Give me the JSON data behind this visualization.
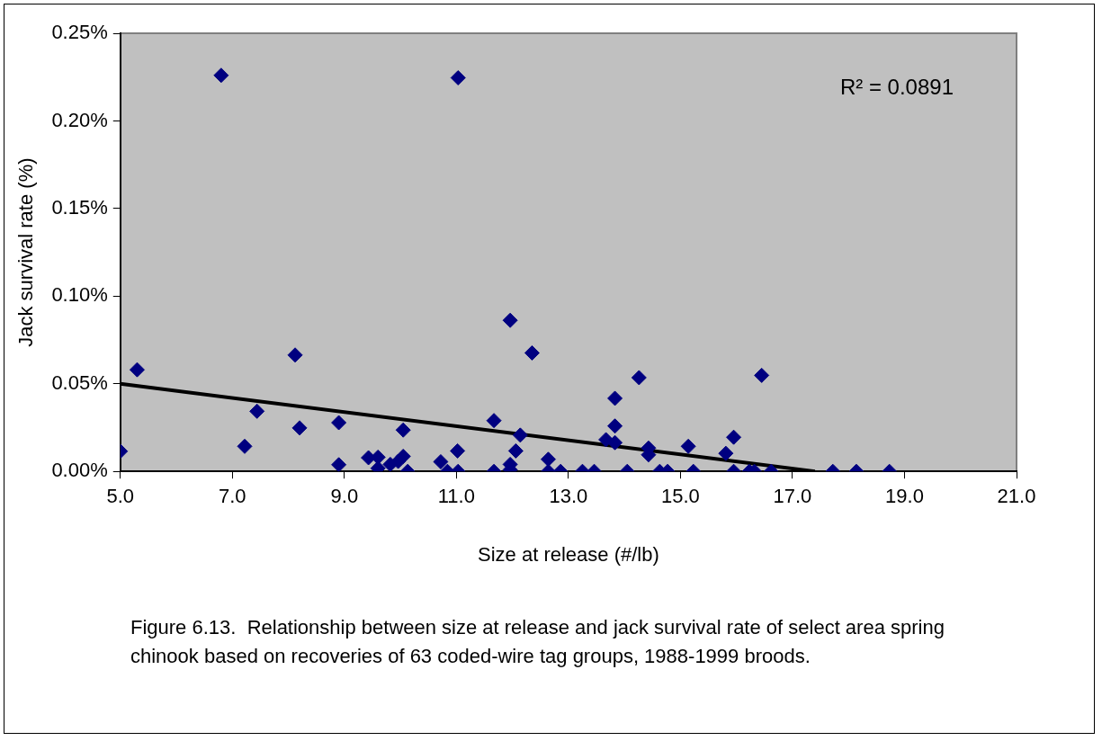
{
  "chart_data": {
    "type": "scatter",
    "xlabel": "Size at release (#/lb)",
    "ylabel": "Jack survival rate (%)",
    "xlim": [
      5,
      21
    ],
    "xticks": [
      {
        "value": 5,
        "label": "5.0"
      },
      {
        "value": 7,
        "label": "7.0"
      },
      {
        "value": 9,
        "label": "9.0"
      },
      {
        "value": 11,
        "label": "11.0"
      },
      {
        "value": 13,
        "label": "13.0"
      },
      {
        "value": 15,
        "label": "15.0"
      },
      {
        "value": 17,
        "label": "17.0"
      },
      {
        "value": 19,
        "label": "19.0"
      },
      {
        "value": 21,
        "label": "21.0"
      }
    ],
    "ylim": [
      0,
      0.25
    ],
    "yticks": [
      {
        "value": 0,
        "label": "0.00%"
      },
      {
        "value": 0.05,
        "label": "0.05%"
      },
      {
        "value": 0.1,
        "label": "0.10%"
      },
      {
        "value": 0.15,
        "label": "0.15%"
      },
      {
        "value": 0.2,
        "label": "0.20%"
      },
      {
        "value": 0.25,
        "label": "0.25%"
      }
    ],
    "grid": false,
    "legend": false,
    "marker": "diamond",
    "series": [
      {
        "color": "#000080",
        "x": [
          5.0,
          5.3,
          6.8,
          7.22,
          7.44,
          8.12,
          8.2,
          8.9,
          8.9,
          9.43,
          9.6,
          9.6,
          9.82,
          9.96,
          10.05,
          10.05,
          10.13,
          10.72,
          10.84,
          11.02,
          11.03,
          11.03,
          11.67,
          11.67,
          11.96,
          11.96,
          11.96,
          12.06,
          12.14,
          12.35,
          12.64,
          12.64,
          12.86,
          13.25,
          13.46,
          13.67,
          13.83,
          13.83,
          13.83,
          14.05,
          14.26,
          14.43,
          14.43,
          14.63,
          14.77,
          15.14,
          15.23,
          15.81,
          15.95,
          15.95,
          16.23,
          16.32,
          16.45,
          16.62,
          17.72,
          18.14,
          18.73
        ],
        "values": [
          0.0115,
          0.058,
          0.226,
          0.0143,
          0.0343,
          0.0664,
          0.0248,
          0.0278,
          0.0038,
          0.0078,
          0.0081,
          0.0018,
          0.004,
          0.0057,
          0.0086,
          0.0236,
          0,
          0.0055,
          0,
          0.0117,
          0,
          0.2246,
          0.029,
          0,
          0.0862,
          0.004,
          0.0009,
          0.0117,
          0.0207,
          0.0676,
          0.0069,
          0,
          0,
          0,
          0,
          0.0181,
          0.0417,
          0.0259,
          0.0164,
          0,
          0.0535,
          0.0133,
          0.0095,
          0,
          0,
          0.0143,
          0,
          0.0103,
          0.0195,
          0,
          0,
          0,
          0.0548,
          0,
          0,
          0,
          0
        ]
      },
      {
        "type": "line",
        "color": "#000000",
        "line_style": "solid",
        "marker": "none",
        "x": [
          5.0,
          17.4
        ],
        "values": [
          0.05,
          0
        ]
      }
    ],
    "annotations": [
      "R² = 0.0891",
      "Figure 6.13.  Relationship between size at release and jack survival rate of select area spring chinook based on recoveries of 63 coded-wire tag groups, 1988-1999 broods."
    ]
  }
}
